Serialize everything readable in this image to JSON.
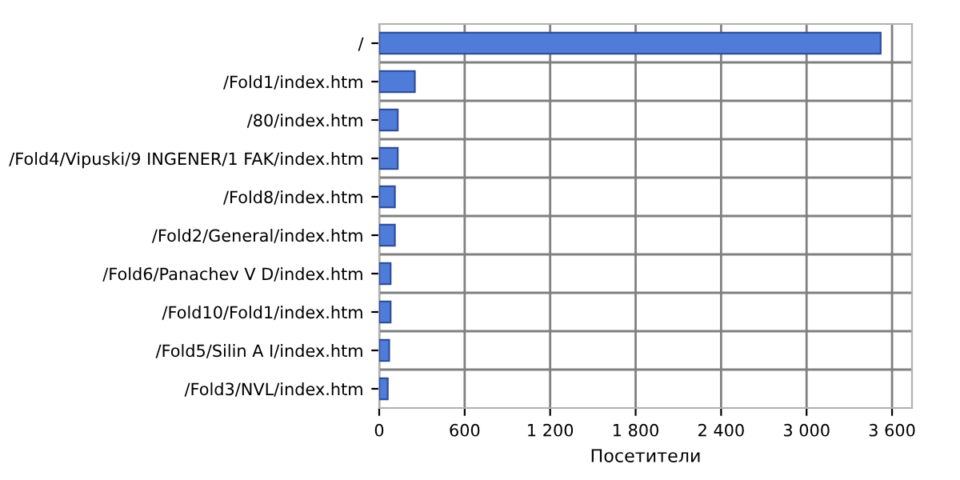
{
  "chart_data": {
    "type": "bar",
    "orientation": "horizontal",
    "xlabel": "Посетители",
    "categories": [
      "/",
      "/Fold1/index.htm",
      "/80/index.htm",
      "/Fold4/Vipuski/9 INGENER/1 FAK/index.htm",
      "/Fold8/index.htm",
      "/Fold2/General/index.htm",
      "/Fold6/Panachev V D/index.htm",
      "/Fold10/Fold1/index.htm",
      "/Fold5/Silin A I/index.htm",
      "/Fold3/NVL/index.htm"
    ],
    "values": [
      3520,
      250,
      130,
      130,
      110,
      110,
      80,
      80,
      70,
      60
    ],
    "color": "#4f7bd9",
    "xlim": [
      0,
      3740
    ],
    "xticks": [
      0,
      600,
      {
        "value": 1200,
        "label": "1 200"
      },
      {
        "value": 1800,
        "label": "1 800"
      },
      {
        "value": 2400,
        "label": "2 400"
      },
      {
        "value": 3000,
        "label": "3 000"
      },
      {
        "value": 3600,
        "label": "3 600"
      }
    ],
    "grid": true
  }
}
